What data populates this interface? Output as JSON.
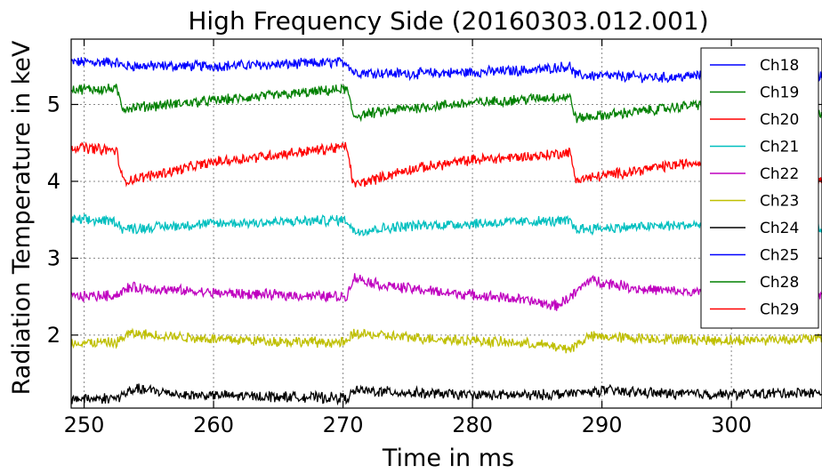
{
  "chart_data": {
    "type": "line",
    "title": "High Frequency Side (20160303.012.001)",
    "xlabel": "Time in ms",
    "ylabel": "Radiation Temperature in keV",
    "xlim": [
      249,
      307
    ],
    "ylim": [
      1.05,
      5.85
    ],
    "xticks": [
      250,
      260,
      270,
      280,
      290,
      300
    ],
    "yticks": [
      2,
      3,
      4,
      5
    ],
    "grid": true,
    "legend_position": "top-right",
    "noise_amplitude": 0.06,
    "series": [
      {
        "name": "Ch18",
        "color": "#0000ff",
        "x": [
          249,
          252.5,
          253,
          260,
          265,
          270.3,
          270.8,
          275,
          280,
          285,
          287.5,
          288,
          295,
          300,
          305.5,
          306,
          307
        ],
        "y": [
          5.55,
          5.55,
          5.5,
          5.5,
          5.52,
          5.55,
          5.42,
          5.4,
          5.42,
          5.45,
          5.5,
          5.38,
          5.35,
          5.4,
          5.45,
          5.38,
          5.38
        ]
      },
      {
        "name": "Ch19",
        "color": "#008000",
        "x": [
          249,
          252.5,
          253,
          260,
          265,
          270.3,
          270.8,
          275,
          280,
          285,
          287.5,
          288,
          295,
          300,
          305.5,
          306,
          307
        ],
        "y": [
          5.2,
          5.2,
          4.95,
          5.05,
          5.12,
          5.2,
          4.85,
          4.95,
          5.02,
          5.08,
          5.1,
          4.82,
          4.95,
          5.05,
          5.12,
          4.9,
          4.9
        ]
      },
      {
        "name": "Ch20",
        "color": "#ff0000",
        "x": [
          249,
          252.5,
          253,
          260,
          265,
          270.3,
          270.8,
          275,
          280,
          285,
          287.5,
          288,
          295,
          300,
          305.5,
          306,
          307
        ],
        "y": [
          4.45,
          4.4,
          4.0,
          4.25,
          4.35,
          4.45,
          3.95,
          4.15,
          4.28,
          4.33,
          4.38,
          4.02,
          4.2,
          4.3,
          4.35,
          4.0,
          4.0
        ]
      },
      {
        "name": "Ch21",
        "color": "#00bfbf",
        "x": [
          249,
          252.5,
          253,
          260,
          265,
          270.3,
          270.8,
          275,
          280,
          285,
          287.5,
          288,
          295,
          300,
          305.5,
          306,
          307
        ],
        "y": [
          3.5,
          3.48,
          3.38,
          3.45,
          3.47,
          3.5,
          3.35,
          3.42,
          3.45,
          3.48,
          3.48,
          3.38,
          3.42,
          3.45,
          3.47,
          3.38,
          3.38
        ]
      },
      {
        "name": "Ch22",
        "color": "#bf00bf",
        "x": [
          249,
          252.5,
          253.5,
          260,
          265,
          270.3,
          270.8,
          273,
          278,
          283,
          286.5,
          288,
          289,
          293,
          300,
          305.5,
          307
        ],
        "y": [
          2.5,
          2.52,
          2.62,
          2.55,
          2.52,
          2.5,
          2.75,
          2.65,
          2.55,
          2.48,
          2.38,
          2.55,
          2.72,
          2.6,
          2.52,
          2.5,
          2.5
        ]
      },
      {
        "name": "Ch23",
        "color": "#bfbf00",
        "x": [
          249,
          252.5,
          253.5,
          260,
          265,
          270.3,
          270.8,
          275,
          280,
          285,
          287.5,
          289,
          295,
          300,
          305,
          307
        ],
        "y": [
          1.9,
          1.9,
          2.02,
          1.95,
          1.92,
          1.9,
          2.02,
          1.97,
          1.93,
          1.88,
          1.82,
          1.98,
          1.95,
          1.93,
          1.95,
          1.95
        ]
      },
      {
        "name": "Ch24",
        "color": "#000000",
        "x": [
          249,
          252.5,
          254,
          258,
          265,
          270.3,
          271,
          275,
          280,
          285,
          288.5,
          290,
          295,
          300,
          305,
          307
        ],
        "y": [
          1.17,
          1.18,
          1.3,
          1.22,
          1.2,
          1.18,
          1.28,
          1.25,
          1.22,
          1.22,
          1.25,
          1.28,
          1.24,
          1.23,
          1.25,
          1.25
        ]
      },
      {
        "name": "Ch25",
        "color": "#0000ff",
        "x": [],
        "y": []
      },
      {
        "name": "Ch28",
        "color": "#008000",
        "x": [],
        "y": []
      },
      {
        "name": "Ch29",
        "color": "#ff0000",
        "x": [],
        "y": []
      }
    ]
  }
}
